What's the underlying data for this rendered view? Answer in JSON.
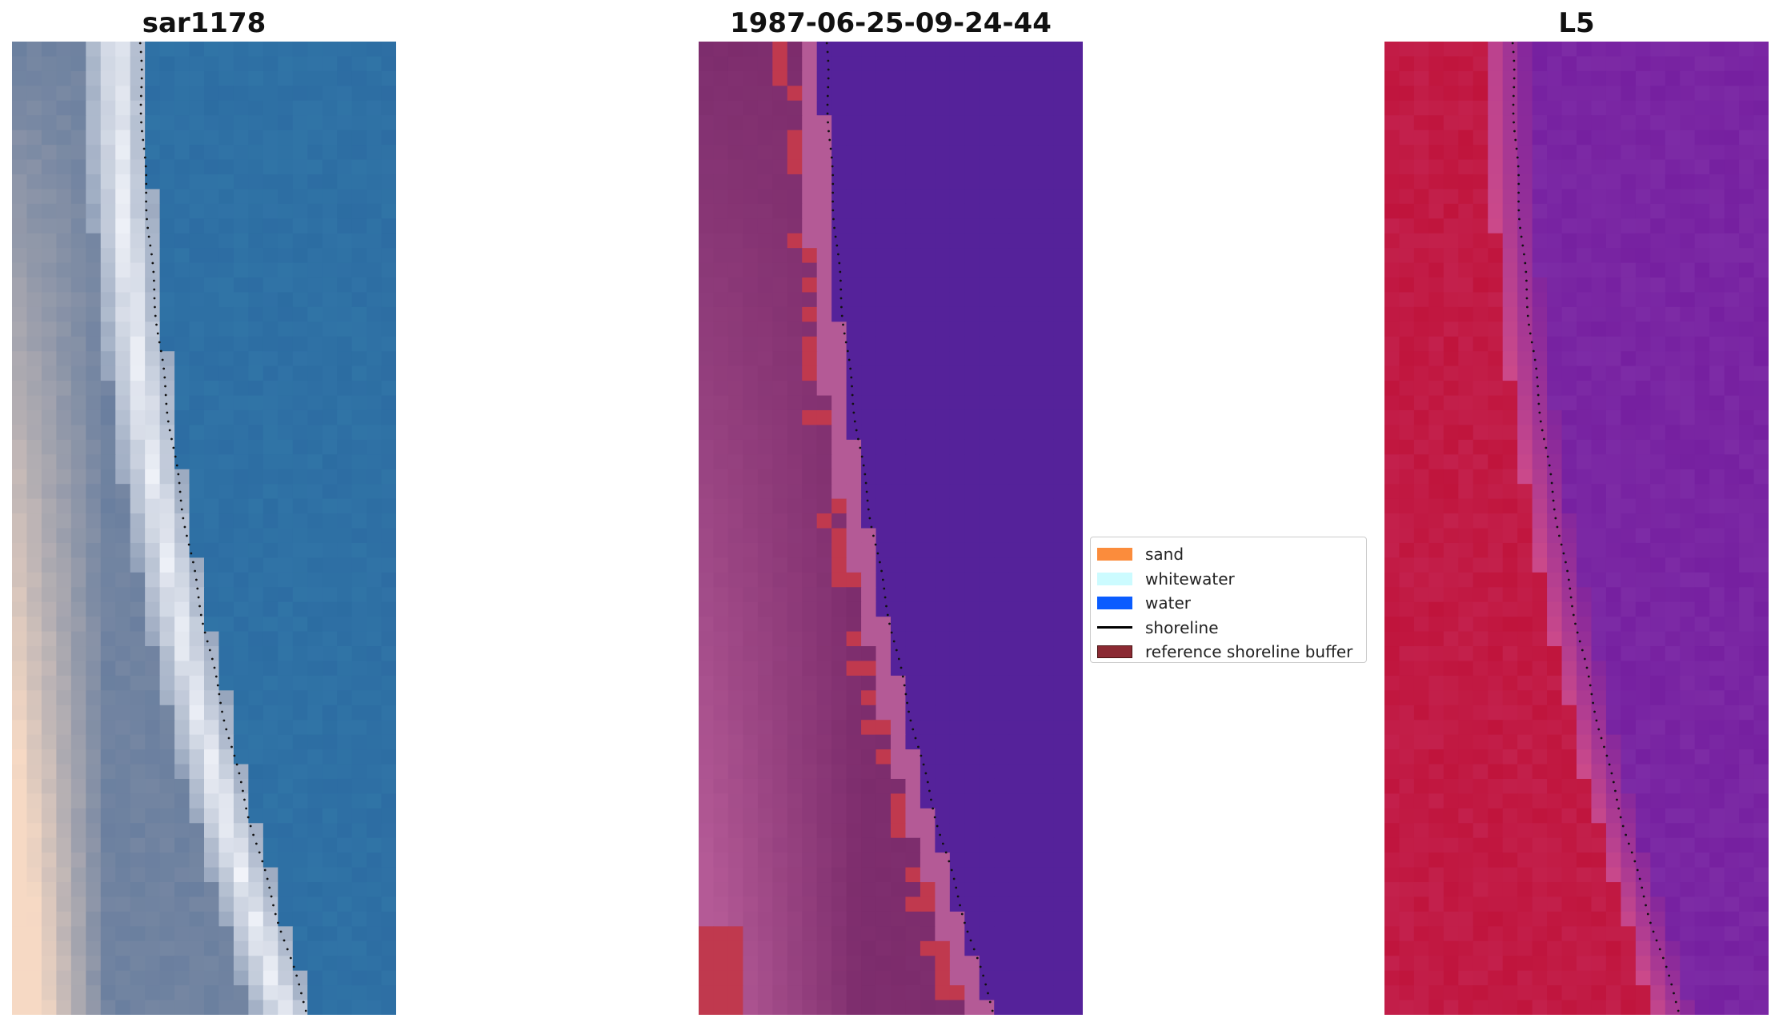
{
  "panels": [
    {
      "title": "sar1178",
      "kind": "rgb"
    },
    {
      "title": "1987-06-25-09-24-44",
      "kind": "classified"
    },
    {
      "title": "L5",
      "kind": "index"
    }
  ],
  "legend": {
    "items": [
      {
        "label": "sand",
        "color": "#fb8c3c",
        "symbol": "patch"
      },
      {
        "label": "whitewater",
        "color": "#ccfbff",
        "symbol": "patch"
      },
      {
        "label": "water",
        "color": "#0a5cff",
        "symbol": "patch"
      },
      {
        "label": "shoreline",
        "color": "#000000",
        "symbol": "line"
      },
      {
        "label": "reference shoreline buffer",
        "color": "#8b2a33",
        "symbol": "patch"
      }
    ]
  },
  "colors": {
    "rgb_sand": "#f6d9c4",
    "rgb_land": "#6a7f9f",
    "rgb_surf": "#f2f4fa",
    "rgb_water": "#2a68a0",
    "class_land": "#7c2c6c",
    "class_buffer_edge": "#b45a96",
    "class_buffer": "#c0394e",
    "class_water": "#55229a",
    "index_land": "#c0143c",
    "index_edge": "#cc4a8a",
    "index_water": "#7620a0",
    "shoreline_dots": "#111111"
  }
}
